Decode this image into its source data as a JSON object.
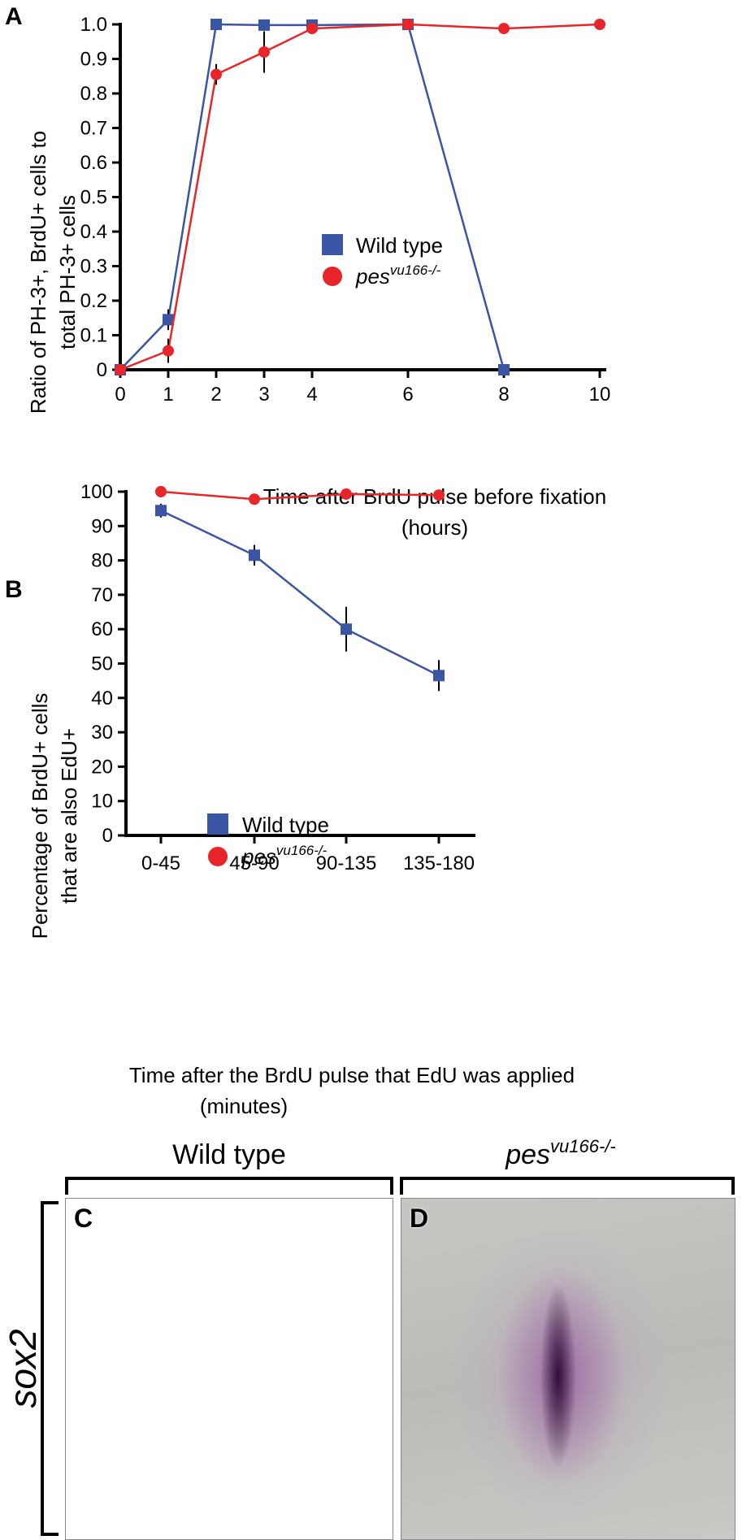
{
  "chart_data": [
    {
      "panel": "A",
      "type": "line",
      "xlabel": "Time after BrdU pulse before fixation",
      "xlabel2": "(hours)",
      "ylabel": "Ratio of PH-3+, BrdU+ cells to",
      "ylabel2": "total PH-3+ cells",
      "xlim": [
        0,
        10
      ],
      "ylim": [
        0,
        1.0
      ],
      "xticks": [
        "0",
        "1",
        "2",
        "3",
        "4",
        "6",
        "8",
        "10"
      ],
      "xtick_values": [
        0,
        1,
        2,
        3,
        4,
        6,
        8,
        10
      ],
      "yticks": [
        "0",
        "0.1",
        "0.2",
        "0.3",
        "0.4",
        "0.5",
        "0.6",
        "0.7",
        "0.8",
        "0.9",
        "1.0"
      ],
      "ytick_values": [
        0,
        0.1,
        0.2,
        0.3,
        0.4,
        0.5,
        0.6,
        0.7,
        0.8,
        0.9,
        1.0
      ],
      "legend_position": "center",
      "series": [
        {
          "name": "Wild type",
          "marker": "square",
          "color": "#3a55a4",
          "x": [
            0,
            1,
            2,
            3,
            4,
            6,
            8
          ],
          "y": [
            0,
            0.145,
            1.0,
            0.998,
            0.998,
            1.0,
            0
          ],
          "err": [
            0,
            0.03,
            0,
            0,
            0,
            0,
            0
          ]
        },
        {
          "name": "pes",
          "name_sup": "vu166-/-",
          "marker": "circle",
          "color": "#e8262a",
          "x": [
            0,
            1,
            2,
            3,
            4,
            6,
            8,
            10
          ],
          "y": [
            0,
            0.055,
            0.855,
            0.92,
            0.988,
            1.0,
            0.988,
            1.0
          ],
          "err": [
            0,
            0.035,
            0.03,
            0.06,
            0.015,
            0,
            0.012,
            0
          ]
        }
      ]
    },
    {
      "panel": "B",
      "type": "line",
      "xlabel": "Time after the BrdU pulse that EdU was applied",
      "xlabel2": "(minutes)",
      "ylabel": "Percentage of BrdU+ cells",
      "ylabel2": "that are also EdU+",
      "categories": [
        "0-45",
        "45-90",
        "90-135",
        "135-180"
      ],
      "ylim": [
        0,
        100
      ],
      "yticks": [
        "0",
        "10",
        "20",
        "30",
        "40",
        "50",
        "60",
        "70",
        "80",
        "90",
        "100"
      ],
      "ytick_values": [
        0,
        10,
        20,
        30,
        40,
        50,
        60,
        70,
        80,
        90,
        100
      ],
      "legend_position": "center-left",
      "series": [
        {
          "name": "Wild type",
          "marker": "square",
          "color": "#3a55a4",
          "values": [
            94.5,
            81.5,
            60,
            46.5
          ],
          "err": [
            2,
            3,
            6.5,
            4.5
          ]
        },
        {
          "name": "pes",
          "name_sup": "vu166-/-",
          "marker": "circle",
          "color": "#e8262a",
          "values": [
            100,
            97.8,
            99.3,
            99
          ],
          "err": [
            0,
            1.5,
            1,
            0.5
          ]
        }
      ]
    }
  ],
  "panels": {
    "A_label": "A",
    "B_label": "B",
    "C_label": "C",
    "D_label": "D",
    "wt_header": "Wild type",
    "mut_header": "pes",
    "mut_header_sup": "vu166-/-",
    "gene_label": "sox2"
  }
}
